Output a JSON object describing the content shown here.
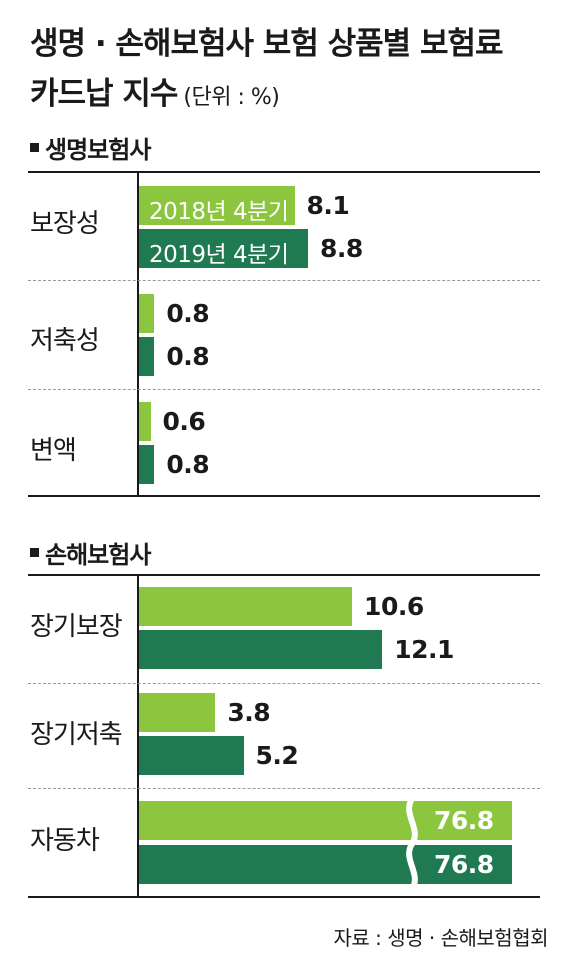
{
  "title_line1": "생명 · 손해보험사 보험 상품별 보험료",
  "title_line2": "카드납 지수",
  "unit": "(단위 : %)",
  "source": "자료 :  생명 · 손해보험협회",
  "colors": {
    "2018": "#8cc63f",
    "2019": "#1f7a52"
  },
  "chart_data": [
    {
      "type": "bar",
      "orientation": "horizontal",
      "title": "생명보험사",
      "categories": [
        "보장성",
        "저축성",
        "변액"
      ],
      "series": [
        {
          "name": "2018년 4분기",
          "values": [
            8.1,
            0.8,
            0.6
          ]
        },
        {
          "name": "2019년 4분기",
          "values": [
            8.8,
            0.8,
            0.8
          ]
        }
      ],
      "legend": "inside-bars"
    },
    {
      "type": "bar",
      "orientation": "horizontal",
      "title": "손해보험사",
      "categories": [
        "장기보장",
        "장기저축",
        "자동차"
      ],
      "series": [
        {
          "name": "2018년 4분기",
          "values": [
            10.6,
            3.8,
            76.8
          ]
        },
        {
          "name": "2019년 4분기",
          "values": [
            12.1,
            5.2,
            76.8
          ]
        }
      ],
      "axis_break": true
    }
  ]
}
